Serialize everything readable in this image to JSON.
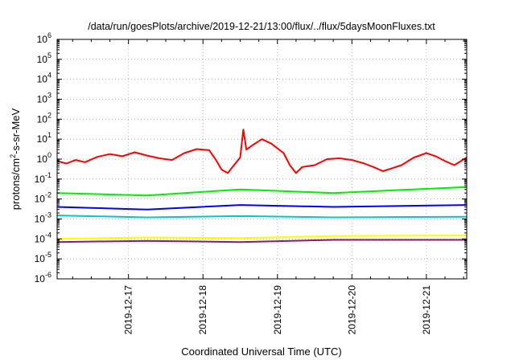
{
  "chart_data": {
    "type": "line",
    "title": "/data/run/goesPlots/archive/2019-12-21/13:00/flux/../flux/5daysMoonFluxes.txt",
    "xlabel": "Coordinated Universal Time (UTC)",
    "ylabel": "protons/cm²-s-sr-MeV",
    "ylabel_parts": {
      "pre": "protons/cm",
      "sup": "2",
      "post": "-s-sr-MeV"
    },
    "y_scale": "log",
    "ylim_exp": [
      -6,
      6
    ],
    "y_ticks": [
      {
        "exp": -6,
        "text_base": "10",
        "text_exp": "-6"
      },
      {
        "exp": -5,
        "text_base": "10",
        "text_exp": "-5"
      },
      {
        "exp": -4,
        "text_base": "10",
        "text_exp": "-4"
      },
      {
        "exp": -3,
        "text_base": "10",
        "text_exp": "-3"
      },
      {
        "exp": -2,
        "text_base": "10",
        "text_exp": "-2"
      },
      {
        "exp": -1,
        "text_base": "10",
        "text_exp": "-1"
      },
      {
        "exp": 0,
        "text_base": "10",
        "text_exp": "0"
      },
      {
        "exp": 1,
        "text_base": "10",
        "text_exp": "1"
      },
      {
        "exp": 2,
        "text_base": "10",
        "text_exp": "2"
      },
      {
        "exp": 3,
        "text_base": "10",
        "text_exp": "3"
      },
      {
        "exp": 4,
        "text_base": "10",
        "text_exp": "4"
      },
      {
        "exp": 5,
        "text_base": "10",
        "text_exp": "5"
      },
      {
        "exp": 6,
        "text_base": "10",
        "text_exp": "6"
      }
    ],
    "x_range": [
      "2019-12-16T01:00",
      "2019-12-21T13:00"
    ],
    "x_ticks": [
      "2019-12-17",
      "2019-12-18",
      "2019-12-19",
      "2019-12-20",
      "2019-12-21"
    ],
    "grid": true,
    "series": [
      {
        "color": "#ff0000",
        "points": [
          [
            "2019-12-16T01:00",
            0.8
          ],
          [
            "2019-12-16T04:00",
            0.6
          ],
          [
            "2019-12-16T07:00",
            0.9
          ],
          [
            "2019-12-16T10:00",
            0.7
          ],
          [
            "2019-12-16T14:00",
            1.3
          ],
          [
            "2019-12-16T18:00",
            1.8
          ],
          [
            "2019-12-16T22:00",
            1.4
          ],
          [
            "2019-12-17T02:00",
            2.2
          ],
          [
            "2019-12-17T06:00",
            1.5
          ],
          [
            "2019-12-17T10:00",
            1.1
          ],
          [
            "2019-12-17T14:00",
            0.9
          ],
          [
            "2019-12-17T18:00",
            2.0
          ],
          [
            "2019-12-17T22:00",
            3.2
          ],
          [
            "2019-12-18T02:00",
            2.8
          ],
          [
            "2019-12-18T04:00",
            1.0
          ],
          [
            "2019-12-18T06:00",
            0.3
          ],
          [
            "2019-12-18T08:00",
            0.2
          ],
          [
            "2019-12-18T10:00",
            0.5
          ],
          [
            "2019-12-18T12:00",
            1.2
          ],
          [
            "2019-12-18T13:00",
            30
          ],
          [
            "2019-12-18T14:00",
            3.0
          ],
          [
            "2019-12-18T16:00",
            5.0
          ],
          [
            "2019-12-18T19:00",
            10
          ],
          [
            "2019-12-18T22:00",
            6.0
          ],
          [
            "2019-12-19T02:00",
            2.0
          ],
          [
            "2019-12-19T04:00",
            0.5
          ],
          [
            "2019-12-19T06:00",
            0.2
          ],
          [
            "2019-12-19T08:00",
            0.4
          ],
          [
            "2019-12-19T12:00",
            0.5
          ],
          [
            "2019-12-19T16:00",
            1.0
          ],
          [
            "2019-12-19T20:00",
            1.1
          ],
          [
            "2019-12-20T00:00",
            0.9
          ],
          [
            "2019-12-20T04:00",
            0.6
          ],
          [
            "2019-12-20T07:00",
            0.4
          ],
          [
            "2019-12-20T10:00",
            0.25
          ],
          [
            "2019-12-20T13:00",
            0.35
          ],
          [
            "2019-12-20T16:00",
            0.5
          ],
          [
            "2019-12-20T20:00",
            1.2
          ],
          [
            "2019-12-21T00:00",
            2.0
          ],
          [
            "2019-12-21T03:00",
            1.4
          ],
          [
            "2019-12-21T06:00",
            0.8
          ],
          [
            "2019-12-21T09:00",
            0.5
          ],
          [
            "2019-12-21T13:00",
            1.2
          ]
        ]
      },
      {
        "color": "#00ee00",
        "points": [
          [
            "2019-12-16T01:00",
            0.02
          ],
          [
            "2019-12-17T06:00",
            0.015
          ],
          [
            "2019-12-18T12:00",
            0.03
          ],
          [
            "2019-12-19T18:00",
            0.02
          ],
          [
            "2019-12-21T13:00",
            0.04
          ]
        ]
      },
      {
        "color": "#0000ff",
        "points": [
          [
            "2019-12-16T01:00",
            0.004
          ],
          [
            "2019-12-17T06:00",
            0.003
          ],
          [
            "2019-12-18T12:00",
            0.005
          ],
          [
            "2019-12-19T18:00",
            0.004
          ],
          [
            "2019-12-21T13:00",
            0.005
          ]
        ]
      },
      {
        "color": "#00c8c8",
        "points": [
          [
            "2019-12-16T01:00",
            0.0015
          ],
          [
            "2019-12-17T06:00",
            0.0012
          ],
          [
            "2019-12-18T12:00",
            0.0014
          ],
          [
            "2019-12-19T18:00",
            0.0012
          ],
          [
            "2019-12-21T13:00",
            0.0013
          ]
        ]
      },
      {
        "color": "#ffff00",
        "points": [
          [
            "2019-12-16T01:00",
            0.0001
          ],
          [
            "2019-12-17T06:00",
            0.00012
          ],
          [
            "2019-12-18T12:00",
            0.00011
          ],
          [
            "2019-12-19T18:00",
            0.00014
          ],
          [
            "2019-12-21T13:00",
            0.00015
          ]
        ]
      },
      {
        "color": "#8b1c62",
        "points": [
          [
            "2019-12-16T01:00",
            7e-05
          ],
          [
            "2019-12-17T06:00",
            8e-05
          ],
          [
            "2019-12-18T12:00",
            7e-05
          ],
          [
            "2019-12-19T18:00",
            9e-05
          ],
          [
            "2019-12-21T13:00",
            9e-05
          ]
        ]
      }
    ]
  }
}
